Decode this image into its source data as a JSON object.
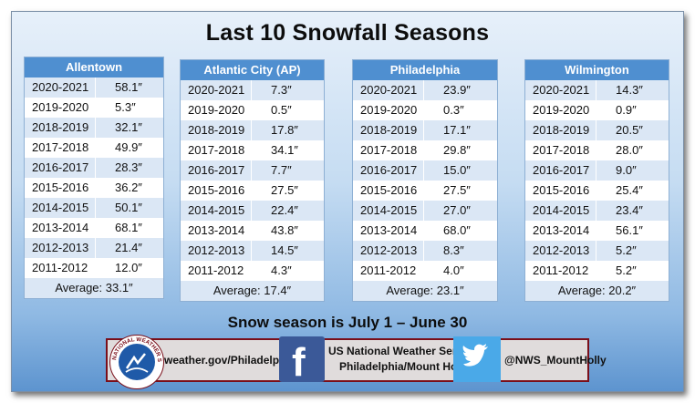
{
  "title": "Last 10 Snowfall Seasons",
  "tables": [
    {
      "city": "Allentown",
      "rows": [
        {
          "season": "2020-2021",
          "amount": "58.1″"
        },
        {
          "season": "2019-2020",
          "amount": "5.3″"
        },
        {
          "season": "2018-2019",
          "amount": "32.1″"
        },
        {
          "season": "2017-2018",
          "amount": "49.9″"
        },
        {
          "season": "2016-2017",
          "amount": "28.3″"
        },
        {
          "season": "2015-2016",
          "amount": "36.2″"
        },
        {
          "season": "2014-2015",
          "amount": "50.1″"
        },
        {
          "season": "2013-2014",
          "amount": "68.1″"
        },
        {
          "season": "2012-2013",
          "amount": "21.4″"
        },
        {
          "season": "2011-2012",
          "amount": "12.0″"
        }
      ],
      "average": "Average: 33.1″"
    },
    {
      "city": "Atlantic City (AP)",
      "rows": [
        {
          "season": "2020-2021",
          "amount": "7.3″"
        },
        {
          "season": "2019-2020",
          "amount": "0.5″"
        },
        {
          "season": "2018-2019",
          "amount": "17.8″"
        },
        {
          "season": "2017-2018",
          "amount": "34.1″"
        },
        {
          "season": "2016-2017",
          "amount": "7.7″"
        },
        {
          "season": "2015-2016",
          "amount": "27.5″"
        },
        {
          "season": "2014-2015",
          "amount": "22.4″"
        },
        {
          "season": "2013-2014",
          "amount": "43.8″"
        },
        {
          "season": "2012-2013",
          "amount": "14.5″"
        },
        {
          "season": "2011-2012",
          "amount": "4.3″"
        }
      ],
      "average": "Average: 17.4″"
    },
    {
      "city": "Philadelphia",
      "rows": [
        {
          "season": "2020-2021",
          "amount": "23.9″"
        },
        {
          "season": "2019-2020",
          "amount": "0.3″"
        },
        {
          "season": "2018-2019",
          "amount": "17.1″"
        },
        {
          "season": "2017-2018",
          "amount": "29.8″"
        },
        {
          "season": "2016-2017",
          "amount": "15.0″"
        },
        {
          "season": "2015-2016",
          "amount": "27.5″"
        },
        {
          "season": "2014-2015",
          "amount": "27.0″"
        },
        {
          "season": "2013-2014",
          "amount": "68.0″"
        },
        {
          "season": "2012-2013",
          "amount": "8.3″"
        },
        {
          "season": "2011-2012",
          "amount": "4.0″"
        }
      ],
      "average": "Average: 23.1″"
    },
    {
      "city": "Wilmington",
      "rows": [
        {
          "season": "2020-2021",
          "amount": "14.3″"
        },
        {
          "season": "2019-2020",
          "amount": "0.9″"
        },
        {
          "season": "2018-2019",
          "amount": "20.5″"
        },
        {
          "season": "2017-2018",
          "amount": "28.0″"
        },
        {
          "season": "2016-2017",
          "amount": "9.0″"
        },
        {
          "season": "2015-2016",
          "amount": "25.4″"
        },
        {
          "season": "2014-2015",
          "amount": "23.4″"
        },
        {
          "season": "2013-2014",
          "amount": "56.1″"
        },
        {
          "season": "2012-2013",
          "amount": "5.2″"
        },
        {
          "season": "2011-2012",
          "amount": "5.2″"
        }
      ],
      "average": "Average: 20.2″"
    }
  ],
  "season_note": "Snow season is July 1 – June 30",
  "footer": {
    "seal_text": "NATIONAL WEATHER SERVICE",
    "website": "weather.gov/Philadelphia",
    "nws_line1": "US National Weather Service",
    "nws_line2": "Philadelphia/Mount Holly",
    "twitter_handle": "@NWS_MountHolly",
    "facebook_icon": "facebook-icon",
    "twitter_icon": "twitter-icon",
    "colors": {
      "header_blue": "#4f8fd0",
      "facebook_blue": "#3b5998",
      "twitter_blue": "#4aa9e8",
      "banner_border": "#7a0f1a"
    }
  }
}
